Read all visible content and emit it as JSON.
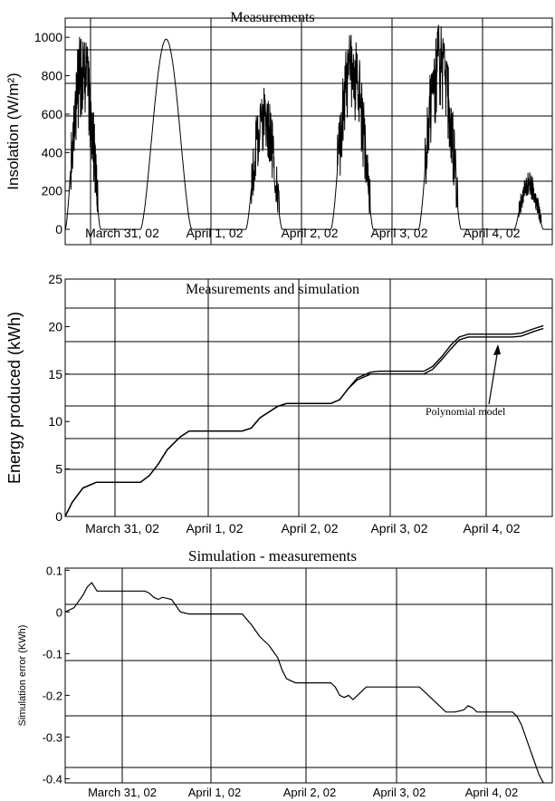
{
  "chart_data": [
    {
      "type": "line",
      "title": "Measurements",
      "ylabel": "Insolation (W/m²)",
      "xlabel": "",
      "xlim": [
        0,
        5.5
      ],
      "ylim": [
        -80,
        1100
      ],
      "yticks": [
        0,
        200,
        400,
        600,
        800,
        1000
      ],
      "ytick_labels": [
        "0",
        "200",
        "400",
        "600",
        "800",
        "1000"
      ],
      "xtick_labels": [
        "March 31, 02",
        "April 1, 02",
        "April 2, 02",
        "April 3, 02",
        "April 4, 02"
      ],
      "grid": true,
      "days": [
        {
          "x0": 0.0,
          "x1": 0.4,
          "peak": 1080,
          "noisy": true
        },
        {
          "x0": 0.85,
          "x1": 1.43,
          "peak": 990,
          "noisy": false
        },
        {
          "x0": 2.04,
          "x1": 2.45,
          "peak": 750,
          "noisy": true
        },
        {
          "x0": 3.0,
          "x1": 3.48,
          "peak": 1050,
          "noisy": true
        },
        {
          "x0": 3.99,
          "x1": 4.47,
          "peak": 1080,
          "noisy": true
        },
        {
          "x0": 5.07,
          "x1": 5.4,
          "peak": 300,
          "noisy": true
        }
      ]
    },
    {
      "type": "line",
      "title": "Measurements and simulation",
      "ylabel": "Energy produced (kWh)",
      "xlabel": "",
      "xlim": [
        0,
        5.5
      ],
      "ylim": [
        0,
        25
      ],
      "yticks": [
        0,
        5,
        10,
        15,
        20,
        25
      ],
      "ytick_labels": [
        "0",
        "5",
        "10",
        "15",
        "20",
        "25"
      ],
      "xtick_labels": [
        "March 31, 02",
        "April 1, 02",
        "April 2, 02",
        "April 3, 02",
        "April 4, 02"
      ],
      "grid": true,
      "annotation": "Polynomial model",
      "series": [
        {
          "x": [
            0,
            0.08,
            0.2,
            0.35,
            0.5,
            0.85,
            0.95,
            1.05,
            1.15,
            1.3,
            1.4,
            1.5,
            1.6,
            2.0,
            2.1,
            2.2,
            2.4,
            2.5,
            2.6,
            3.0,
            3.1,
            3.2,
            3.3,
            3.45,
            3.55,
            3.65,
            4.05,
            4.15,
            4.25,
            4.35,
            4.45,
            4.55,
            4.65,
            5.05,
            5.15,
            5.3,
            5.4
          ],
          "y": [
            0,
            1.5,
            3.0,
            3.6,
            3.6,
            3.6,
            4.3,
            5.5,
            7.0,
            8.4,
            9.0,
            9.0,
            9.0,
            9.0,
            9.3,
            10.4,
            11.6,
            11.9,
            11.9,
            11.9,
            12.3,
            13.5,
            14.6,
            15.2,
            15.3,
            15.3,
            15.3,
            15.8,
            16.8,
            18.0,
            18.9,
            19.2,
            19.2,
            19.2,
            19.3,
            19.8,
            20.1
          ]
        },
        {
          "x": [
            0,
            0.08,
            0.2,
            0.35,
            0.5,
            0.85,
            0.95,
            1.05,
            1.15,
            1.3,
            1.4,
            1.5,
            1.6,
            2.0,
            2.1,
            2.2,
            2.4,
            2.5,
            2.6,
            3.0,
            3.1,
            3.2,
            3.3,
            3.45,
            3.55,
            3.65,
            4.05,
            4.15,
            4.25,
            4.35,
            4.45,
            4.55,
            4.65,
            5.05,
            5.15,
            5.3,
            5.4
          ],
          "y": [
            0,
            1.5,
            3.0,
            3.6,
            3.6,
            3.6,
            4.3,
            5.5,
            7.0,
            8.4,
            9.0,
            9.0,
            9.0,
            9.0,
            9.3,
            10.4,
            11.6,
            11.9,
            11.9,
            11.9,
            12.3,
            13.5,
            14.4,
            15.0,
            15.0,
            15.0,
            15.0,
            15.5,
            16.5,
            17.6,
            18.6,
            18.9,
            18.9,
            18.9,
            19.0,
            19.5,
            19.8
          ]
        }
      ]
    },
    {
      "type": "line",
      "title": "Simulation - measurements",
      "ylabel": "Simulation error (KWh)",
      "xlabel": "",
      "xlim": [
        0,
        5.5
      ],
      "ylim": [
        -0.41,
        0.105
      ],
      "yticks": [
        -0.4,
        -0.3,
        -0.2,
        -0.1,
        0,
        0.1
      ],
      "ytick_labels": [
        "-0.4",
        "-0.3",
        "-0.2",
        "-0.1",
        "0",
        "0.1"
      ],
      "xtick_labels": [
        "March 31, 02",
        "April 1, 02",
        "April 2, 02",
        "April 3, 02",
        "April 4, 02"
      ],
      "grid": true,
      "series": [
        {
          "x": [
            0,
            0.05,
            0.1,
            0.15,
            0.2,
            0.25,
            0.3,
            0.33,
            0.36,
            0.9,
            0.95,
            1.0,
            1.05,
            1.1,
            1.2,
            1.25,
            1.3,
            1.4,
            1.6,
            2.0,
            2.1,
            2.2,
            2.3,
            2.4,
            2.45,
            2.5,
            2.6,
            3.0,
            3.05,
            3.1,
            3.15,
            3.2,
            3.25,
            3.3,
            3.35,
            3.4,
            3.5,
            3.7,
            4.0,
            4.1,
            4.2,
            4.3,
            4.4,
            4.5,
            4.55,
            4.6,
            4.65,
            4.7,
            4.8,
            5.05,
            5.1,
            5.15,
            5.2,
            5.25,
            5.3,
            5.35,
            5.4
          ],
          "y": [
            0.0,
            0.005,
            0.01,
            0.025,
            0.04,
            0.06,
            0.07,
            0.06,
            0.05,
            0.05,
            0.045,
            0.035,
            0.03,
            0.035,
            0.03,
            0.015,
            0.0,
            -0.005,
            -0.005,
            -0.005,
            -0.03,
            -0.06,
            -0.08,
            -0.11,
            -0.14,
            -0.16,
            -0.17,
            -0.17,
            -0.18,
            -0.2,
            -0.205,
            -0.2,
            -0.21,
            -0.2,
            -0.19,
            -0.18,
            -0.18,
            -0.18,
            -0.18,
            -0.2,
            -0.22,
            -0.24,
            -0.24,
            -0.235,
            -0.225,
            -0.23,
            -0.24,
            -0.24,
            -0.24,
            -0.24,
            -0.25,
            -0.27,
            -0.3,
            -0.33,
            -0.36,
            -0.39,
            -0.41
          ]
        }
      ]
    }
  ]
}
